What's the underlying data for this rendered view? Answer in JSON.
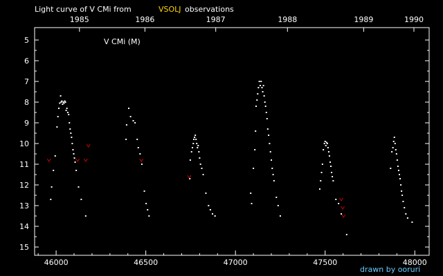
{
  "chart_data": {
    "type": "scatter",
    "title_prefix": "Light curve of V CMi from",
    "title_source": "VSOLJ",
    "title_suffix": "observations",
    "inner_label": "V CMi (M)",
    "credit": "drawn by ooruri",
    "x_ticks": [
      46000,
      46500,
      47000,
      47500,
      48000
    ],
    "y_ticks": [
      5,
      6,
      7,
      8,
      9,
      10,
      11,
      12,
      13,
      14,
      15
    ],
    "xlim": [
      45880,
      48080
    ],
    "ylim": [
      4.4,
      15.4
    ],
    "years": [
      {
        "label": "1985",
        "jd": 46130
      },
      {
        "label": "1986",
        "jd": 46495
      },
      {
        "label": "1987",
        "jd": 46890
      },
      {
        "label": "1988",
        "jd": 47290
      },
      {
        "label": "1989",
        "jd": 47715
      },
      {
        "label": "1990",
        "jd": 47995
      }
    ],
    "grid": false,
    "colors": {
      "background": "#000000",
      "axes": "#ffffff",
      "detection": "#ffffff",
      "fainter_than": "#cc0000",
      "source_highlight": "#ffd700"
    },
    "series": [
      {
        "marker": "dot",
        "points": [
          [
            45970,
            12.7
          ],
          [
            45975,
            12.1
          ],
          [
            45985,
            11.3
          ],
          [
            45995,
            10.6
          ],
          [
            46005,
            9.2
          ],
          [
            46010,
            8.7
          ],
          [
            46015,
            8.3
          ],
          [
            46020,
            8.05
          ],
          [
            46025,
            7.7
          ],
          [
            46028,
            8.0
          ],
          [
            46032,
            7.95
          ],
          [
            46036,
            8.1
          ],
          [
            46040,
            8.0
          ],
          [
            46044,
            8.05
          ],
          [
            46048,
            7.95
          ],
          [
            46052,
            8.0
          ],
          [
            46056,
            8.4
          ],
          [
            46060,
            8.3
          ],
          [
            46065,
            8.5
          ],
          [
            46070,
            8.6
          ],
          [
            46074,
            9.0
          ],
          [
            46078,
            9.3
          ],
          [
            46082,
            9.5
          ],
          [
            46086,
            9.7
          ],
          [
            46090,
            10.0
          ],
          [
            46094,
            10.3
          ],
          [
            46098,
            10.5
          ],
          [
            46102,
            10.7
          ],
          [
            46106,
            10.9
          ],
          [
            46112,
            11.3
          ],
          [
            46125,
            12.1
          ],
          [
            46140,
            12.7
          ],
          [
            46165,
            13.5
          ],
          [
            46390,
            9.8
          ],
          [
            46393,
            9.1
          ],
          [
            46405,
            8.3
          ],
          [
            46415,
            8.7
          ],
          [
            46430,
            8.9
          ],
          [
            46440,
            9.0
          ],
          [
            46452,
            9.8
          ],
          [
            46458,
            10.2
          ],
          [
            46468,
            10.5
          ],
          [
            46478,
            11.0
          ],
          [
            46492,
            12.3
          ],
          [
            46502,
            12.9
          ],
          [
            46510,
            13.2
          ],
          [
            46518,
            13.5
          ],
          [
            46745,
            11.7
          ],
          [
            46748,
            10.8
          ],
          [
            46755,
            10.4
          ],
          [
            46760,
            10.2
          ],
          [
            46765,
            10.0
          ],
          [
            46768,
            9.8
          ],
          [
            46772,
            9.7
          ],
          [
            46776,
            9.6
          ],
          [
            46780,
            9.8
          ],
          [
            46784,
            10.0
          ],
          [
            46788,
            10.2
          ],
          [
            46792,
            10.1
          ],
          [
            46796,
            10.4
          ],
          [
            46800,
            10.7
          ],
          [
            46805,
            11.0
          ],
          [
            46812,
            11.2
          ],
          [
            46820,
            11.5
          ],
          [
            46835,
            12.4
          ],
          [
            46850,
            13.0
          ],
          [
            46860,
            13.2
          ],
          [
            46872,
            13.4
          ],
          [
            46886,
            13.5
          ],
          [
            47085,
            12.4
          ],
          [
            47090,
            12.9
          ],
          [
            47100,
            11.2
          ],
          [
            47108,
            10.3
          ],
          [
            47112,
            9.4
          ],
          [
            47115,
            8.2
          ],
          [
            47120,
            7.9
          ],
          [
            47124,
            7.6
          ],
          [
            47128,
            7.3
          ],
          [
            47133,
            7.0
          ],
          [
            47138,
            7.2
          ],
          [
            47143,
            7.0
          ],
          [
            47148,
            7.3
          ],
          [
            47152,
            7.5
          ],
          [
            47156,
            7.2
          ],
          [
            47160,
            7.7
          ],
          [
            47164,
            8.0
          ],
          [
            47168,
            8.2
          ],
          [
            47172,
            8.5
          ],
          [
            47176,
            8.8
          ],
          [
            47180,
            9.3
          ],
          [
            47185,
            9.6
          ],
          [
            47190,
            10.0
          ],
          [
            47195,
            10.4
          ],
          [
            47200,
            10.8
          ],
          [
            47205,
            11.2
          ],
          [
            47210,
            11.5
          ],
          [
            47215,
            11.8
          ],
          [
            47228,
            12.6
          ],
          [
            47238,
            13.0
          ],
          [
            47250,
            13.5
          ],
          [
            47470,
            12.2
          ],
          [
            47475,
            11.8
          ],
          [
            47480,
            11.4
          ],
          [
            47485,
            11.0
          ],
          [
            47490,
            10.3
          ],
          [
            47496,
            10.0
          ],
          [
            47500,
            9.9
          ],
          [
            47504,
            10.1
          ],
          [
            47508,
            9.95
          ],
          [
            47512,
            10.0
          ],
          [
            47516,
            10.2
          ],
          [
            47520,
            10.4
          ],
          [
            47524,
            10.6
          ],
          [
            47528,
            10.9
          ],
          [
            47532,
            11.1
          ],
          [
            47536,
            11.4
          ],
          [
            47540,
            11.6
          ],
          [
            47545,
            11.8
          ],
          [
            47560,
            12.7
          ],
          [
            47575,
            12.9
          ],
          [
            47590,
            13.4
          ],
          [
            47620,
            14.4
          ],
          [
            47865,
            11.2
          ],
          [
            47872,
            10.4
          ],
          [
            47878,
            10.2
          ],
          [
            47882,
            9.9
          ],
          [
            47886,
            9.7
          ],
          [
            47890,
            10.0
          ],
          [
            47894,
            10.3
          ],
          [
            47898,
            10.5
          ],
          [
            47902,
            10.8
          ],
          [
            47906,
            11.1
          ],
          [
            47910,
            11.3
          ],
          [
            47914,
            11.5
          ],
          [
            47918,
            11.7
          ],
          [
            47922,
            12.0
          ],
          [
            47926,
            12.3
          ],
          [
            47930,
            12.5
          ],
          [
            47935,
            12.8
          ],
          [
            47942,
            13.1
          ],
          [
            47950,
            13.4
          ],
          [
            47960,
            13.6
          ],
          [
            47985,
            13.8
          ]
        ]
      },
      {
        "marker": "v",
        "points": [
          [
            45960,
            10.8
          ],
          [
            46120,
            10.8
          ],
          [
            46165,
            10.8
          ],
          [
            46180,
            10.1
          ],
          [
            46475,
            10.8
          ],
          [
            46742,
            11.6
          ],
          [
            47590,
            12.7
          ],
          [
            47598,
            13.1
          ],
          [
            47603,
            13.5
          ]
        ]
      }
    ]
  }
}
